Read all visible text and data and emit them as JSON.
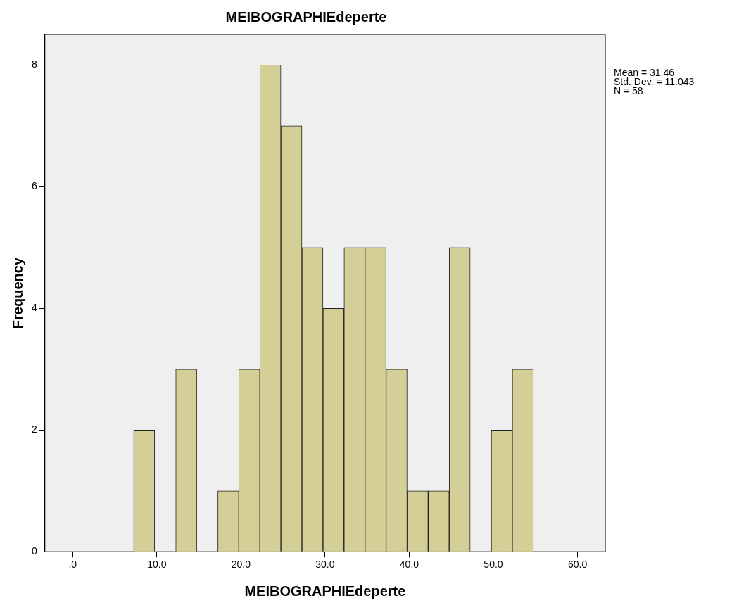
{
  "chart_data": {
    "type": "histogram",
    "title": "MEIBOGRAPHIEdeperte",
    "xlabel": "MEIBOGRAPHIEdeperte",
    "ylabel": "Frequency",
    "bins": [
      7.25,
      9.75,
      12.25,
      14.75,
      17.25,
      19.75,
      22.25,
      24.75,
      27.25,
      29.75,
      32.25,
      34.75,
      37.25,
      39.75,
      42.25,
      44.75,
      47.25,
      49.75,
      52.25,
      54.75
    ],
    "values": [
      2,
      0,
      3,
      0,
      1,
      3,
      8,
      7,
      5,
      4,
      5,
      5,
      3,
      1,
      1,
      5,
      0,
      2,
      3
    ],
    "color": "#d3cf97",
    "xlim": [
      -3.3,
      63.3
    ],
    "xticks": [
      {
        "value": 0,
        "label": ".0"
      },
      {
        "value": 10,
        "label": "10.0"
      },
      {
        "value": 20,
        "label": "20.0"
      },
      {
        "value": 30,
        "label": "30.0"
      },
      {
        "value": 40,
        "label": "40.0"
      },
      {
        "value": 50,
        "label": "50.0"
      },
      {
        "value": 60,
        "label": "60.0"
      }
    ],
    "ylim": [
      0,
      8.5
    ],
    "yticks": [
      0,
      2,
      4,
      6,
      8
    ],
    "grid": false,
    "legend": false,
    "annotations": [
      "Mean = 31.46",
      "Std. Dev. = 11.043",
      "N = 58"
    ]
  }
}
